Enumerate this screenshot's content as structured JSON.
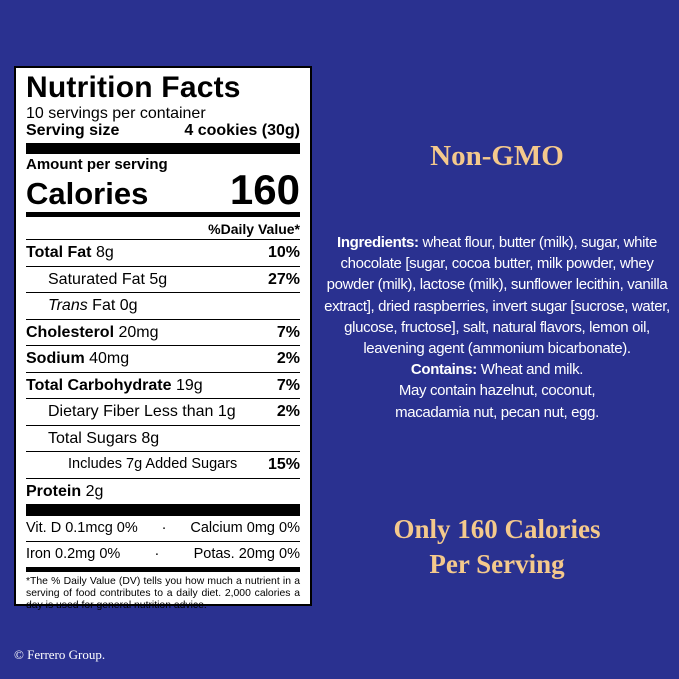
{
  "nutrition": {
    "title": "Nutrition Facts",
    "servings": "10 servings per container",
    "serving_size_label": "Serving size",
    "serving_size_value": "4 cookies (30g)",
    "amount_per_serving": "Amount per serving",
    "calories_label": "Calories",
    "calories_value": "160",
    "dv_header": "%Daily Value*",
    "rows": [
      {
        "label": "Total Fat",
        "amount": "8g",
        "dv": "10%"
      },
      {
        "label": "Saturated Fat",
        "amount": "5g",
        "dv": "27%"
      },
      {
        "label_italic": "Trans",
        "label": "Fat",
        "amount": "0g"
      },
      {
        "label": "Cholesterol",
        "amount": "20mg",
        "dv": "7%"
      },
      {
        "label": "Sodium",
        "amount": "40mg",
        "dv": "2%"
      },
      {
        "label": "Total Carbohydrate",
        "amount": "19g",
        "dv": "7%"
      },
      {
        "label": "Dietary Fiber",
        "amount": "Less than 1g",
        "dv": "2%"
      },
      {
        "label": "Total Sugars",
        "amount": "8g"
      },
      {
        "label": "Includes 7g Added Sugars",
        "dv": "15%"
      },
      {
        "label": "Protein",
        "amount": "2g"
      }
    ],
    "vitamins": [
      [
        "Vit. D 0.1mcg 0%",
        "Calcium 0mg 0%"
      ],
      [
        "Iron 0.2mg 0%",
        "Potas. 20mg 0%"
      ]
    ],
    "footnote": "*The % Daily Value (DV) tells you how much a nutrient in a serving of food contributes to a daily diet. 2,000 calories a day is used for general nutrition advice."
  },
  "side": {
    "heading": "Non-GMO",
    "ingredients_label": "Ingredients:",
    "ingredients": "wheat flour, butter (milk), sugar, white chocolate [sugar, cocoa butter, milk powder, whey powder (milk), lactose (milk), sunflower lecithin, vanilla extract], dried raspberries, invert sugar [sucrose, water, glucose, fructose], salt, natural flavors, lemon oil, leavening agent (ammonium bicarbonate).",
    "contains_label": "Contains:",
    "contains": "Wheat and milk.",
    "may_contain": "May contain hazelnut, coconut, macadamia nut, pecan nut, egg.",
    "tagline": [
      "Only 160 Calories",
      "Per Serving"
    ]
  },
  "copyright": "© Ferrero Group."
}
